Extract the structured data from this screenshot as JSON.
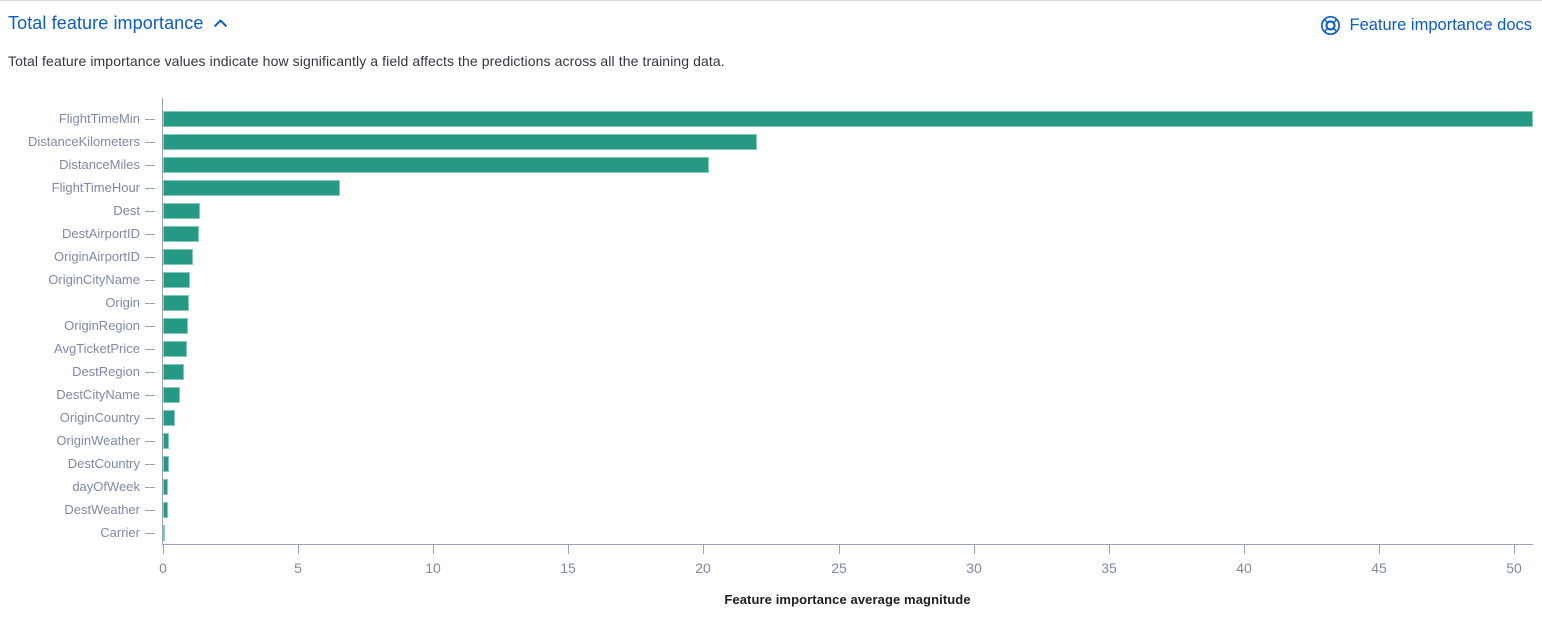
{
  "header": {
    "title": "Total feature importance",
    "collapse_icon": "chevron-up",
    "docs_link_label": "Feature importance docs",
    "docs_link_icon": "help-lifebuoy"
  },
  "description": "Total feature importance values indicate how significantly a field affects the predictions across all the training data.",
  "colors": {
    "link_blue": "#0b5cc4",
    "bar_teal": "#269984",
    "axis_line": "#98a5b8",
    "axis_label": "#7d8ba3",
    "description_text": "#343741",
    "axis_title_text": "#1d1e24"
  },
  "chart_data": {
    "type": "bar",
    "orientation": "horizontal",
    "title": "",
    "xlabel": "Feature importance average magnitude",
    "ylabel": "",
    "xlim": [
      0,
      50.7
    ],
    "xticks": [
      0,
      5,
      10,
      15,
      20,
      25,
      30,
      35,
      40,
      45,
      50
    ],
    "grid": false,
    "legend": false,
    "categories": [
      "FlightTimeMin",
      "DistanceKilometers",
      "DistanceMiles",
      "FlightTimeHour",
      "Dest",
      "DestAirportID",
      "OriginAirportID",
      "OriginCityName",
      "Origin",
      "OriginRegion",
      "AvgTicketPrice",
      "DestRegion",
      "DestCityName",
      "OriginCountry",
      "OriginWeather",
      "DestCountry",
      "dayOfWeek",
      "DestWeather",
      "Carrier"
    ],
    "values": [
      50.7,
      22.0,
      20.2,
      6.55,
      1.37,
      1.33,
      1.1,
      1.0,
      0.95,
      0.92,
      0.88,
      0.77,
      0.63,
      0.44,
      0.22,
      0.21,
      0.2,
      0.17,
      0.08
    ]
  }
}
